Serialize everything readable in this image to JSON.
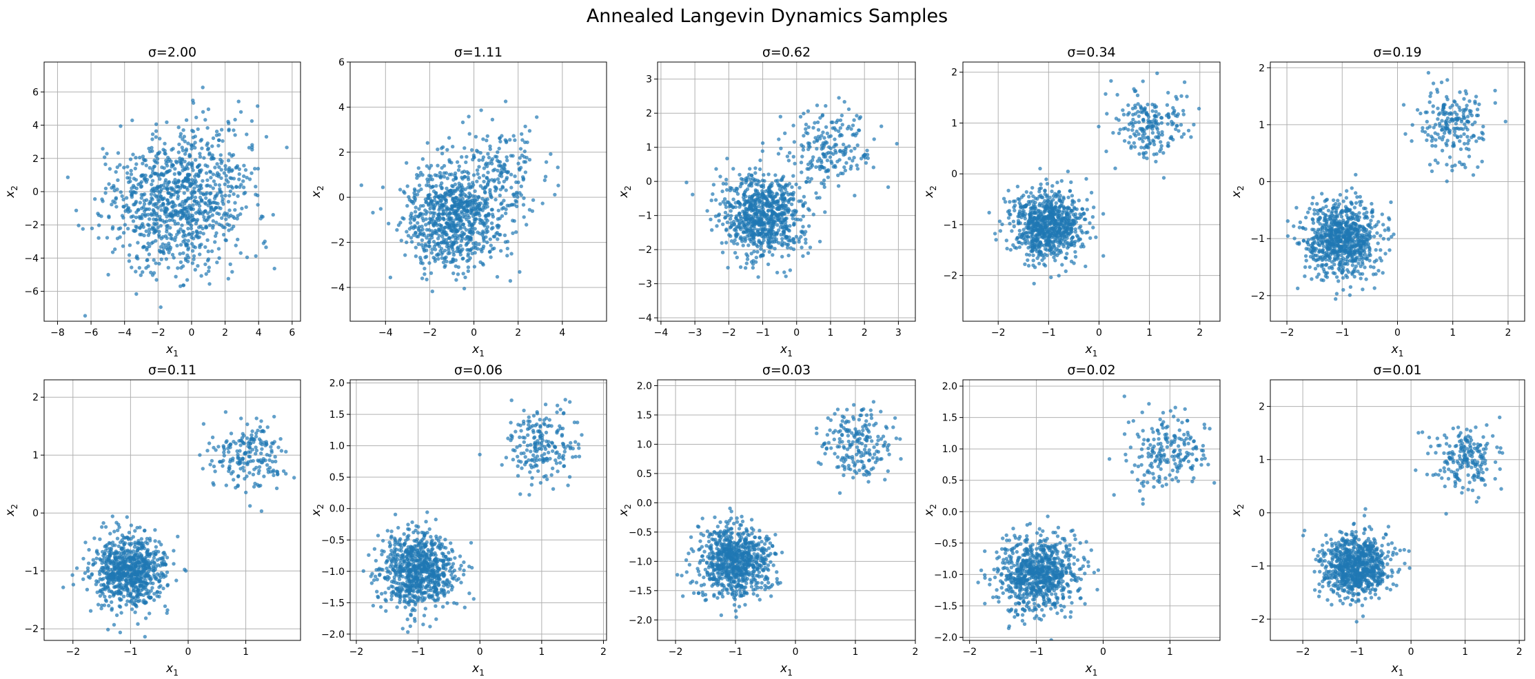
{
  "figure": {
    "title": "Annealed Langevin Dynamics Samples",
    "point_color": "#1f77b4",
    "point_opacity": 0.7,
    "grid_color": "#b0b0b0"
  },
  "chart_data": [
    {
      "type": "scatter",
      "title": "σ=2.00",
      "xlabel": "x1",
      "ylabel": "x2",
      "grid": true,
      "xlim": [
        -8.8,
        6.5
      ],
      "ylim": [
        -7.8,
        7.8
      ],
      "xticks": [
        -8,
        -6,
        -4,
        -2,
        0,
        2,
        4,
        6
      ],
      "yticks": [
        -6,
        -4,
        -2,
        0,
        2,
        4,
        6
      ],
      "cluster_centers": [
        [
          -1,
          -1
        ],
        [
          1,
          1
        ]
      ],
      "cluster_weights": [
        0.8,
        0.2
      ],
      "noise_std": 2.0,
      "n_points": 1000,
      "sample_seed": 11
    },
    {
      "type": "scatter",
      "title": "σ=1.11",
      "xlabel": "x1",
      "ylabel": "x2",
      "grid": true,
      "xlim": [
        -5.6,
        6.0
      ],
      "ylim": [
        -5.5,
        6.0
      ],
      "xticks": [
        -4,
        -2,
        0,
        2,
        4
      ],
      "yticks": [
        -4,
        -2,
        0,
        2,
        4,
        6
      ],
      "cluster_centers": [
        [
          -1,
          -1
        ],
        [
          1,
          1
        ]
      ],
      "cluster_weights": [
        0.8,
        0.2
      ],
      "noise_std": 1.11,
      "n_points": 1000,
      "sample_seed": 12
    },
    {
      "type": "scatter",
      "title": "σ=0.62",
      "xlabel": "x1",
      "ylabel": "x2",
      "grid": true,
      "xlim": [
        -4.1,
        3.5
      ],
      "ylim": [
        -4.1,
        3.5
      ],
      "xticks": [
        -4,
        -3,
        -2,
        -1,
        0,
        1,
        2,
        3
      ],
      "yticks": [
        -4,
        -3,
        -2,
        -1,
        0,
        1,
        2,
        3
      ],
      "cluster_centers": [
        [
          -1,
          -1
        ],
        [
          1,
          1
        ]
      ],
      "cluster_weights": [
        0.8,
        0.2
      ],
      "noise_std": 0.62,
      "n_points": 1000,
      "sample_seed": 13
    },
    {
      "type": "scatter",
      "title": "σ=0.34",
      "xlabel": "x1",
      "ylabel": "x2",
      "grid": true,
      "xlim": [
        -2.7,
        2.4
      ],
      "ylim": [
        -2.9,
        2.2
      ],
      "xticks": [
        -2,
        -1,
        0,
        1,
        2
      ],
      "yticks": [
        -2,
        -1,
        0,
        1,
        2
      ],
      "cluster_centers": [
        [
          -1,
          -1
        ],
        [
          1,
          1
        ]
      ],
      "cluster_weights": [
        0.8,
        0.2
      ],
      "noise_std": 0.34,
      "n_points": 1000,
      "sample_seed": 14
    },
    {
      "type": "scatter",
      "title": "σ=0.19",
      "xlabel": "x1",
      "ylabel": "x2",
      "grid": true,
      "xlim": [
        -2.3,
        2.3
      ],
      "ylim": [
        -2.45,
        2.1
      ],
      "xticks": [
        -2,
        -1,
        0,
        1,
        2
      ],
      "yticks": [
        -2,
        -1,
        0,
        1,
        2
      ],
      "cluster_centers": [
        [
          -1,
          -1
        ],
        [
          1,
          1
        ]
      ],
      "cluster_weights": [
        0.8,
        0.2
      ],
      "noise_std": 0.33,
      "n_points": 1000,
      "sample_seed": 15
    },
    {
      "type": "scatter",
      "title": "σ=0.11",
      "xlabel": "x1",
      "ylabel": "x2",
      "grid": true,
      "xlim": [
        -2.5,
        1.95
      ],
      "ylim": [
        -2.2,
        2.3
      ],
      "xticks": [
        -2,
        -1,
        0,
        1
      ],
      "yticks": [
        -2,
        -1,
        0,
        1,
        2
      ],
      "cluster_centers": [
        [
          -1,
          -1
        ],
        [
          1,
          1
        ]
      ],
      "cluster_weights": [
        0.8,
        0.2
      ],
      "noise_std": 0.32,
      "n_points": 1000,
      "sample_seed": 16
    },
    {
      "type": "scatter",
      "title": "σ=0.06",
      "xlabel": "x1",
      "ylabel": "x2",
      "grid": true,
      "xlim": [
        -2.1,
        2.05
      ],
      "ylim": [
        -2.1,
        2.05
      ],
      "xticks": [
        -2,
        -1,
        0,
        1,
        2
      ],
      "yticks": [
        -2.0,
        -1.5,
        -1.0,
        -0.5,
        0.0,
        0.5,
        1.0,
        1.5,
        2.0
      ],
      "cluster_centers": [
        [
          -1,
          -1
        ],
        [
          1,
          1
        ]
      ],
      "cluster_weights": [
        0.8,
        0.2
      ],
      "noise_std": 0.3,
      "n_points": 1000,
      "sample_seed": 17
    },
    {
      "type": "scatter",
      "title": "σ=0.03",
      "xlabel": "x1",
      "ylabel": "x2",
      "grid": true,
      "xlim": [
        -2.3,
        2.0
      ],
      "ylim": [
        -2.35,
        2.1
      ],
      "xticks": [
        -2,
        -1,
        0,
        1,
        2
      ],
      "yticks": [
        -2.0,
        -1.5,
        -1.0,
        -0.5,
        0.0,
        0.5,
        1.0,
        1.5,
        2.0
      ],
      "cluster_centers": [
        [
          -1,
          -1
        ],
        [
          1,
          1
        ]
      ],
      "cluster_weights": [
        0.8,
        0.2
      ],
      "noise_std": 0.3,
      "n_points": 1000,
      "sample_seed": 18
    },
    {
      "type": "scatter",
      "title": "σ=0.02",
      "xlabel": "x1",
      "ylabel": "x2",
      "grid": true,
      "xlim": [
        -2.1,
        1.75
      ],
      "ylim": [
        -2.05,
        2.1
      ],
      "xticks": [
        -2,
        -1,
        0,
        1
      ],
      "yticks": [
        -2.0,
        -1.5,
        -1.0,
        -0.5,
        0.0,
        0.5,
        1.0,
        1.5,
        2.0
      ],
      "cluster_centers": [
        [
          -1,
          -1
        ],
        [
          1,
          1
        ]
      ],
      "cluster_weights": [
        0.8,
        0.2
      ],
      "noise_std": 0.3,
      "n_points": 1000,
      "sample_seed": 19
    },
    {
      "type": "scatter",
      "title": "σ=0.01",
      "xlabel": "x1",
      "ylabel": "x2",
      "grid": true,
      "xlim": [
        -2.6,
        2.1
      ],
      "ylim": [
        -2.4,
        2.5
      ],
      "xticks": [
        -2,
        -1,
        0,
        1,
        2
      ],
      "yticks": [
        -2,
        -1,
        0,
        1,
        2
      ],
      "cluster_centers": [
        [
          -1,
          -1
        ],
        [
          1,
          1
        ]
      ],
      "cluster_weights": [
        0.8,
        0.2
      ],
      "noise_std": 0.3,
      "n_points": 1000,
      "sample_seed": 20
    }
  ]
}
